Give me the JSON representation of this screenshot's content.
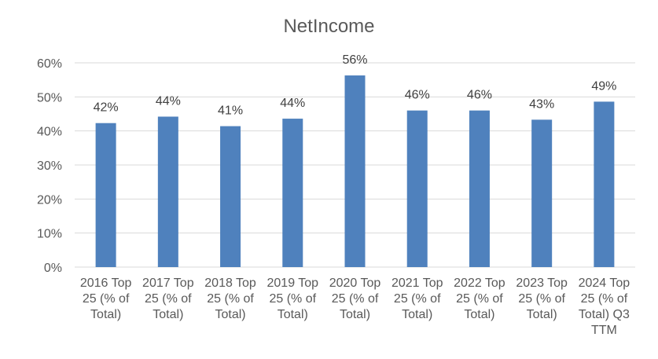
{
  "chart_data": {
    "type": "bar",
    "title": "NetIncome",
    "xlabel": "",
    "ylabel": "",
    "ylim": [
      0,
      60
    ],
    "yticks": [
      "0%",
      "10%",
      "20%",
      "30%",
      "40%",
      "50%",
      "60%"
    ],
    "grid": true,
    "legend": "none",
    "bar_color": "#4F81BD",
    "categories": [
      [
        "2016 Top",
        "25 (% of",
        "Total)"
      ],
      [
        "2017 Top",
        "25 (% of",
        "Total)"
      ],
      [
        "2018 Top",
        "25 (% of",
        "Total)"
      ],
      [
        "2019 Top",
        "25 (% of",
        "Total)"
      ],
      [
        "2020 Top",
        "25 (% of",
        "Total)"
      ],
      [
        "2021 Top",
        "25 (% of",
        "Total)"
      ],
      [
        "2022 Top",
        "25 (% of",
        "Total)"
      ],
      [
        "2023 Top",
        "25 (% of",
        "Total)"
      ],
      [
        "2024 Top",
        "25 (% of",
        "Total) Q3",
        "TTM"
      ]
    ],
    "values": [
      42.3,
      44.2,
      41.4,
      43.6,
      56.3,
      46.0,
      46.0,
      43.3,
      48.6
    ],
    "data_labels": [
      "42%",
      "44%",
      "41%",
      "44%",
      "56%",
      "46%",
      "46%",
      "43%",
      "49%"
    ]
  }
}
